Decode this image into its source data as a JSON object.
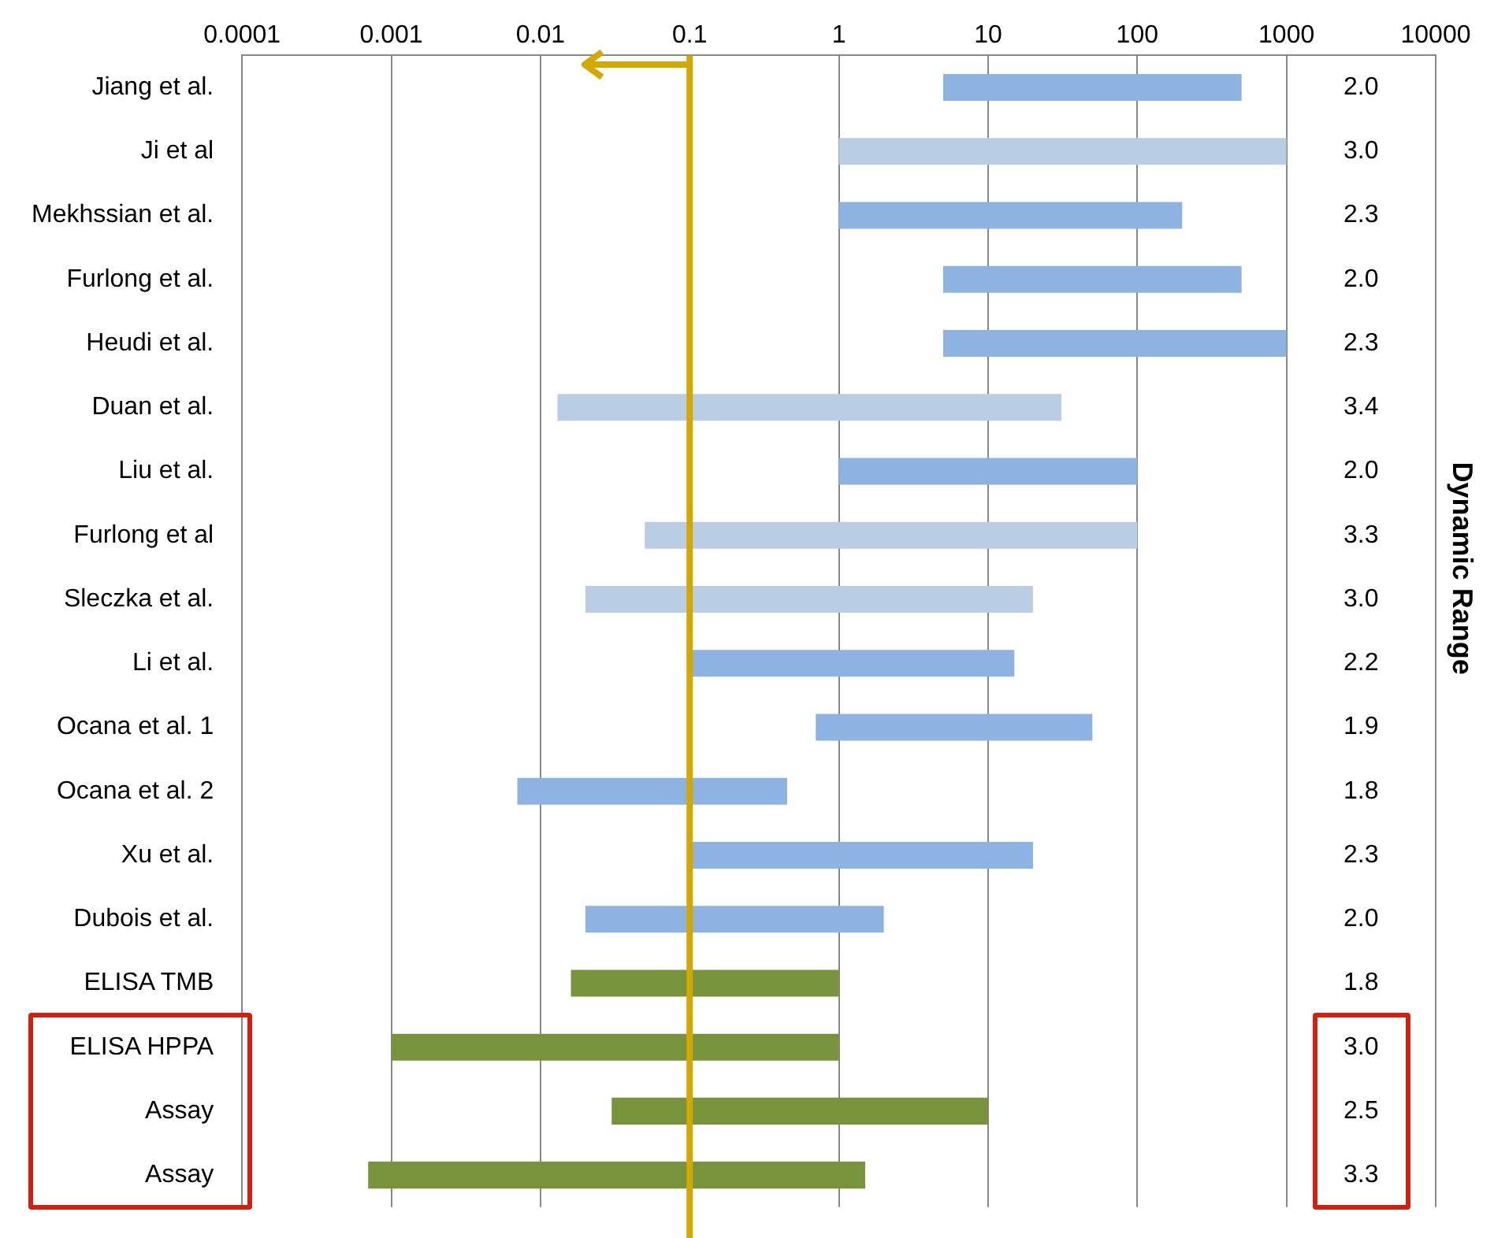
{
  "chart_data": {
    "type": "bar",
    "orientation": "horizontal",
    "log": "x",
    "y2label": "Dynamic Range",
    "categories": [
      "Jiang et al.",
      "Ji et al",
      "Mekhssian et al.",
      "Furlong et al.",
      "Heudi et al.",
      "Duan et al.",
      "Liu et al.",
      "Furlong et al",
      "Sleczka et al.",
      "Li et al.",
      "Ocana et al. 1",
      "Ocana et al. 2",
      "Xu et al.",
      "Dubois et al.",
      "ELISA TMB",
      "ELISA HPPA",
      "Assay",
      "Assay"
    ],
    "base": [
      5,
      1,
      1,
      5,
      5,
      0.013,
      1,
      0.05,
      0.02,
      0.1,
      0.7,
      0.007,
      0.1,
      0.02,
      0.016,
      0.001,
      0.03,
      0.0007
    ],
    "values": [
      495,
      999,
      199,
      495,
      995,
      30.987,
      99,
      99.95,
      19.98,
      14.9,
      49.3,
      0.443,
      19.9,
      1.98,
      0.984,
      0.999,
      9.97,
      1.4993
    ],
    "colors": [
      "#8db3e2",
      "#b9cde5",
      "#8db3e2",
      "#8db3e2",
      "#8db3e2",
      "#b9cde5",
      "#8db3e2",
      "#b9cde5",
      "#b9cde5",
      "#8db3e2",
      "#8db3e2",
      "#8db3e2",
      "#8db3e2",
      "#8db3e2",
      "#77933c",
      "#77933c",
      "#77933c",
      "#77933c"
    ],
    "annotations": [
      "2.0",
      "3.0",
      "2.3",
      "2.0",
      "2.3",
      "3.4",
      "2.0",
      "3.3",
      "3.0",
      "2.2",
      "1.9",
      "1.8",
      "2.3",
      "2.0",
      "1.8",
      "3.0",
      "2.5",
      "3.3"
    ],
    "xlim": [
      0.0001,
      10000
    ],
    "xticks": [
      0.0001,
      0.001,
      0.01,
      0.1,
      1,
      10,
      100,
      1000,
      10000
    ],
    "ref_lines": [
      {
        "axis": "x",
        "value": 0.1,
        "color": "#d4a800"
      }
    ],
    "grid": "x",
    "legend": false
  }
}
